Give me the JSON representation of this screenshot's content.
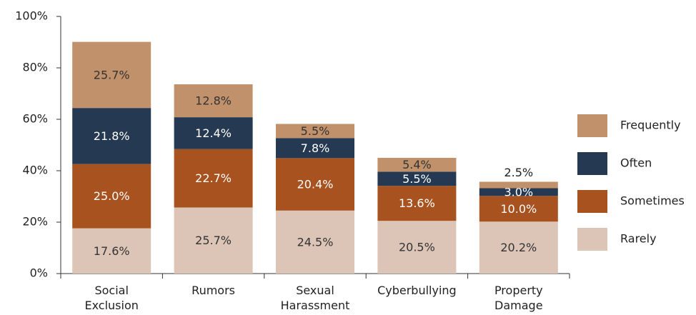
{
  "chart_data": {
    "type": "stacked_bar",
    "categories": [
      [
        "Social",
        "Exclusion"
      ],
      [
        "Rumors"
      ],
      [
        "Sexual",
        "Harassment"
      ],
      [
        "Cyberbullying"
      ],
      [
        "Property",
        "Damage"
      ]
    ],
    "series": [
      {
        "name": "Rarely",
        "color": "#dcc5b6",
        "text_color": "#333333",
        "values": [
          17.6,
          25.7,
          24.5,
          20.5,
          20.2
        ],
        "value_labels": [
          "17.6%",
          "25.7%",
          "24.5%",
          "20.5%",
          "20.2%"
        ]
      },
      {
        "name": "Sometimes",
        "color": "#a8531f",
        "text_color": "#ffffff",
        "values": [
          25.0,
          22.7,
          20.4,
          13.6,
          10.0
        ],
        "value_labels": [
          "25.0%",
          "22.7%",
          "20.4%",
          "13.6%",
          "10.0%"
        ]
      },
      {
        "name": "Often",
        "color": "#253a52",
        "text_color": "#ffffff",
        "values": [
          21.8,
          12.4,
          7.8,
          5.5,
          3.0
        ],
        "value_labels": [
          "21.8%",
          "12.4%",
          "7.8%",
          "5.5%",
          "3.0%"
        ]
      },
      {
        "name": "Frequently",
        "color": "#c0916a",
        "text_color": "#333333",
        "values": [
          25.7,
          12.8,
          5.5,
          5.4,
          2.5
        ],
        "value_labels": [
          "25.7%",
          "12.8%",
          "5.5%",
          "5.4%",
          "2.5%"
        ]
      }
    ],
    "ylim": [
      0,
      100
    ],
    "yticks": [
      {
        "value": 0,
        "label": "0%"
      },
      {
        "value": 20,
        "label": "20%"
      },
      {
        "value": 40,
        "label": "40%"
      },
      {
        "value": 60,
        "label": "60%"
      },
      {
        "value": 80,
        "label": "80%"
      },
      {
        "value": 100,
        "label": "100%"
      }
    ],
    "legend": "right"
  }
}
